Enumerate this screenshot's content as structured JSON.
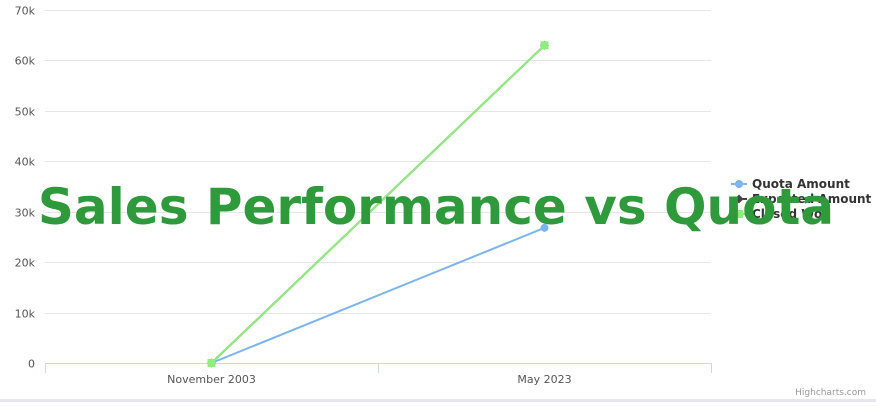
{
  "overlay_title": "Sales Performance vs Quota",
  "credits": "Highcharts.com",
  "chart_data": {
    "type": "line",
    "categories": [
      "November 2003",
      "May 2023"
    ],
    "ylim": [
      0,
      70000
    ],
    "y_ticks": [
      {
        "value": 0,
        "label": "0"
      },
      {
        "value": 10000,
        "label": "10k"
      },
      {
        "value": 20000,
        "label": "20k"
      },
      {
        "value": 30000,
        "label": "30k"
      },
      {
        "value": 40000,
        "label": "40k"
      },
      {
        "value": 50000,
        "label": "50k"
      },
      {
        "value": 60000,
        "label": "60k"
      },
      {
        "value": 70000,
        "label": "70k"
      }
    ],
    "grid": true,
    "legend_position": "right",
    "series": [
      {
        "name": "Quota Amount",
        "values": [
          0,
          26800
        ],
        "color": "#7cb5ec",
        "marker": "circle"
      },
      {
        "name": "Expected Amount",
        "values": [
          0,
          63000
        ],
        "color": "#434348",
        "marker": "diamond"
      },
      {
        "name": "Closed Won",
        "values": [
          0,
          63000
        ],
        "color": "#90ed7d",
        "marker": "square"
      }
    ]
  }
}
